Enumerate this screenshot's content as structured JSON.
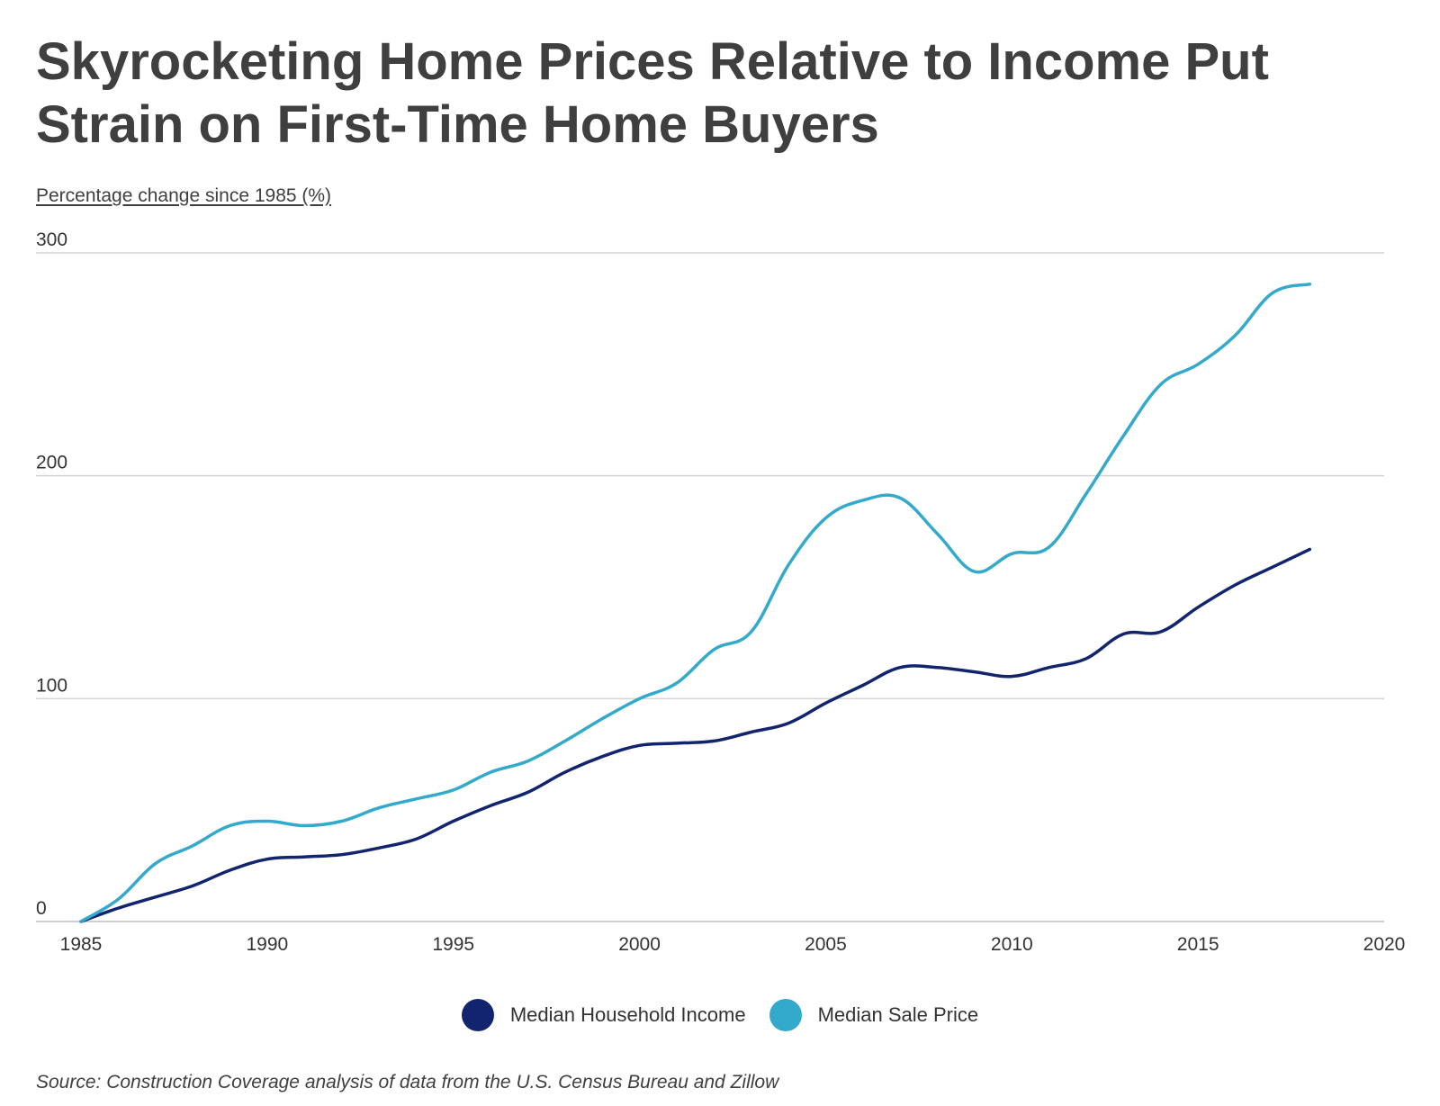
{
  "title": "Skyrocketing Home Prices Relative to Income Put Strain on First-Time Home Buyers",
  "subtitle": "Percentage change since 1985 (%)",
  "source": "Source: Construction Coverage analysis of data from the U.S. Census Bureau and Zillow",
  "colors": {
    "income": "#13246f",
    "price": "#33a9cb",
    "grid": "#d4d4d4"
  },
  "chart_data": {
    "type": "line",
    "title": "Skyrocketing Home Prices Relative to Income Put Strain on First-Time Home Buyers",
    "ylabel": "Percentage change since 1985 (%)",
    "xlabel": "",
    "xlim": [
      1985,
      2020
    ],
    "ylim": [
      0,
      300
    ],
    "x_ticks": [
      "1985",
      "1990",
      "1995",
      "2000",
      "2005",
      "2010",
      "2015",
      "2020"
    ],
    "y_ticks": [
      "0",
      "100",
      "200",
      "300"
    ],
    "grid": true,
    "legend_position": "bottom-center",
    "x": [
      1985,
      1986,
      1987,
      1988,
      1989,
      1990,
      1991,
      1992,
      1993,
      1994,
      1995,
      1996,
      1997,
      1998,
      1999,
      2000,
      2001,
      2002,
      2003,
      2004,
      2005,
      2006,
      2007,
      2008,
      2009,
      2010,
      2011,
      2012,
      2013,
      2014,
      2015,
      2016,
      2017,
      2018
    ],
    "series": [
      {
        "name": "Median Household Income",
        "color": "#13246f",
        "values": [
          0,
          6,
          11,
          16,
          23,
          28,
          29,
          30,
          33,
          37,
          45,
          52,
          58,
          67,
          74,
          79,
          80,
          81,
          85,
          89,
          98,
          106,
          114,
          114,
          112,
          110,
          114,
          118,
          129,
          130,
          141,
          151,
          159,
          167
        ]
      },
      {
        "name": "Median Sale Price",
        "color": "#33a9cb",
        "values": [
          0,
          10,
          26,
          34,
          43,
          45,
          43,
          45,
          51,
          55,
          59,
          67,
          72,
          81,
          91,
          100,
          107,
          122,
          130,
          160,
          181,
          189,
          190,
          174,
          157,
          165,
          168,
          192,
          218,
          241,
          250,
          263,
          282,
          286
        ]
      }
    ]
  }
}
